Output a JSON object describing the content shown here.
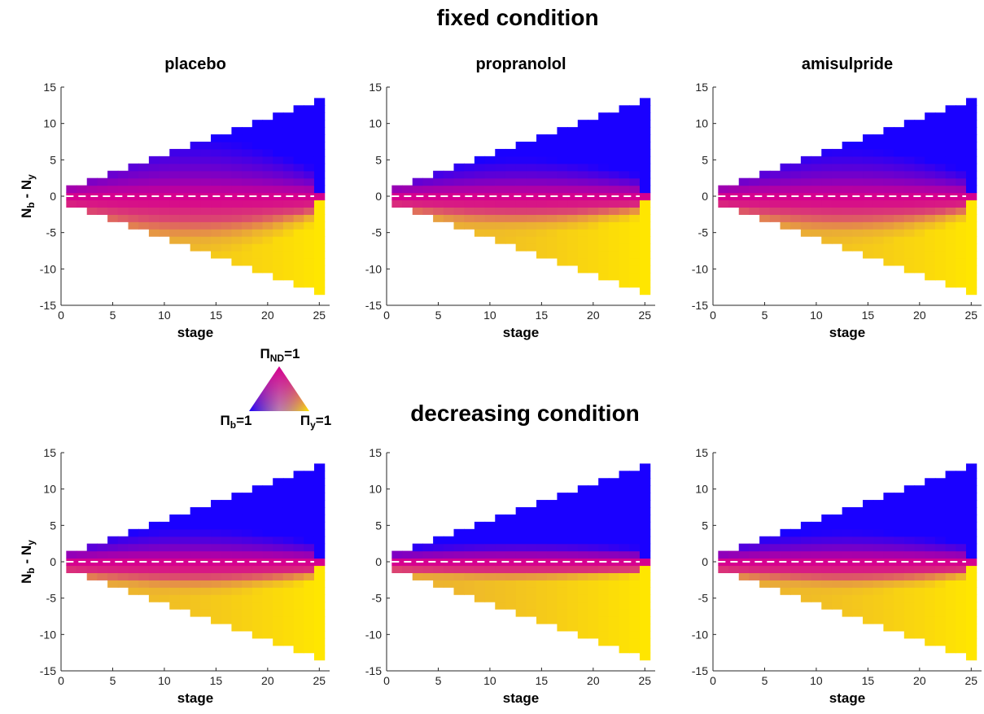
{
  "figure": {
    "fixed_title": "fixed condition",
    "decreasing_title": "decreasing condition"
  },
  "legend": {
    "top_label": "Π",
    "top_sub": "ND",
    "top_suffix": "=1",
    "left_label": "Π",
    "left_sub": "b",
    "left_suffix": "=1",
    "right_label": "Π",
    "right_sub": "y",
    "right_suffix": "=1",
    "colors": {
      "top": "#d6008f",
      "left": "#1a00ff",
      "right": "#ffe600"
    }
  },
  "chart_data": [
    {
      "type": "heatmap",
      "condition": "fixed",
      "title": "placebo",
      "xlabel": "stage",
      "ylabel": {
        "main": "N",
        "sub1": "b",
        "mid": " - N",
        "sub2": "y"
      },
      "xlim": [
        0,
        26
      ],
      "ylim": [
        -15,
        15
      ],
      "xticks": [
        0,
        5,
        10,
        15,
        20,
        25
      ],
      "yticks": [
        15,
        10,
        5,
        0,
        -5,
        -10,
        -15
      ],
      "stages": [
        1,
        25
      ],
      "dashed_zero_line": true,
      "ambiguity_spread": 3.2,
      "ambiguity_bulge": 1.4,
      "colors": {
        "blue": "#1a00ff",
        "magenta": "#d6008f",
        "yellow": "#ffe600",
        "orange": "#e09050"
      }
    },
    {
      "type": "heatmap",
      "condition": "fixed",
      "title": "propranolol",
      "xlabel": "stage",
      "ylabel": {
        "main": "",
        "sub1": "",
        "mid": "",
        "sub2": ""
      },
      "xlim": [
        0,
        26
      ],
      "ylim": [
        -15,
        15
      ],
      "xticks": [
        0,
        5,
        10,
        15,
        20,
        25
      ],
      "yticks": [
        15,
        10,
        5,
        0,
        -5,
        -10,
        -15
      ],
      "stages": [
        1,
        25
      ],
      "dashed_zero_line": true,
      "ambiguity_spread": 2.4,
      "ambiguity_bulge": 1.0,
      "colors": {
        "blue": "#1a00ff",
        "magenta": "#d6008f",
        "yellow": "#ffe600",
        "orange": "#e09050"
      }
    },
    {
      "type": "heatmap",
      "condition": "fixed",
      "title": "amisulpride",
      "xlabel": "stage",
      "ylabel": {
        "main": "",
        "sub1": "",
        "mid": "",
        "sub2": ""
      },
      "xlim": [
        0,
        26
      ],
      "ylim": [
        -15,
        15
      ],
      "xticks": [
        0,
        5,
        10,
        15,
        20,
        25
      ],
      "yticks": [
        15,
        10,
        5,
        0,
        -5,
        -10,
        -15
      ],
      "stages": [
        1,
        25
      ],
      "dashed_zero_line": true,
      "ambiguity_spread": 2.8,
      "ambiguity_bulge": 1.2,
      "colors": {
        "blue": "#1a00ff",
        "magenta": "#d6008f",
        "yellow": "#ffe600",
        "orange": "#e09050"
      }
    },
    {
      "type": "heatmap",
      "condition": "decreasing",
      "title": "",
      "xlabel": "stage",
      "ylabel": {
        "main": "N",
        "sub1": "b",
        "mid": " - N",
        "sub2": "y"
      },
      "xlim": [
        0,
        26
      ],
      "ylim": [
        -15,
        15
      ],
      "xticks": [
        0,
        5,
        10,
        15,
        20,
        25
      ],
      "yticks": [
        15,
        10,
        5,
        0,
        -5,
        -10,
        -15
      ],
      "stages": [
        1,
        25
      ],
      "dashed_zero_line": true,
      "ambiguity_spread": 2.2,
      "ambiguity_bulge": 0.9,
      "colors": {
        "blue": "#1a00ff",
        "magenta": "#d6008f",
        "yellow": "#ffe600",
        "orange": "#e09050"
      }
    },
    {
      "type": "heatmap",
      "condition": "decreasing",
      "title": "",
      "xlabel": "stage",
      "ylabel": {
        "main": "",
        "sub1": "",
        "mid": "",
        "sub2": ""
      },
      "xlim": [
        0,
        26
      ],
      "ylim": [
        -15,
        15
      ],
      "xticks": [
        0,
        5,
        10,
        15,
        20,
        25
      ],
      "yticks": [
        15,
        10,
        5,
        0,
        -5,
        -10,
        -15
      ],
      "stages": [
        1,
        25
      ],
      "dashed_zero_line": true,
      "ambiguity_spread": 1.5,
      "ambiguity_bulge": 0.6,
      "colors": {
        "blue": "#1a00ff",
        "magenta": "#d6008f",
        "yellow": "#ffe600",
        "orange": "#e09050"
      }
    },
    {
      "type": "heatmap",
      "condition": "decreasing",
      "title": "",
      "xlabel": "stage",
      "ylabel": {
        "main": "",
        "sub1": "",
        "mid": "",
        "sub2": ""
      },
      "xlim": [
        0,
        26
      ],
      "ylim": [
        -15,
        15
      ],
      "xticks": [
        0,
        5,
        10,
        15,
        20,
        25
      ],
      "yticks": [
        15,
        10,
        5,
        0,
        -5,
        -10,
        -15
      ],
      "stages": [
        1,
        25
      ],
      "dashed_zero_line": true,
      "ambiguity_spread": 2.0,
      "ambiguity_bulge": 0.9,
      "colors": {
        "blue": "#1a00ff",
        "magenta": "#d6008f",
        "yellow": "#ffe600",
        "orange": "#e09050"
      }
    }
  ]
}
